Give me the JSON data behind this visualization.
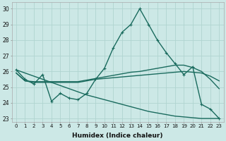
{
  "xlabel": "Humidex (Indice chaleur)",
  "xlim": [
    -0.5,
    23.5
  ],
  "ylim": [
    22.8,
    30.4
  ],
  "yticks": [
    23,
    24,
    25,
    26,
    27,
    28,
    29,
    30
  ],
  "xticks": [
    0,
    1,
    2,
    3,
    4,
    5,
    6,
    7,
    8,
    9,
    10,
    11,
    12,
    13,
    14,
    15,
    16,
    17,
    18,
    19,
    20,
    21,
    22,
    23
  ],
  "bg_color": "#cce8e6",
  "grid_color": "#b0d4d0",
  "line_color": "#1a6b5e",
  "series": [
    {
      "x": [
        0,
        1,
        2,
        3,
        4,
        5,
        6,
        7,
        8,
        9,
        10,
        11,
        12,
        13,
        14,
        15,
        16,
        17,
        18,
        19,
        20,
        21,
        22,
        23
      ],
      "y": [
        26.1,
        25.5,
        25.2,
        25.8,
        24.1,
        24.6,
        24.3,
        24.2,
        24.6,
        25.5,
        26.2,
        27.5,
        28.5,
        29.0,
        30.0,
        29.0,
        28.0,
        27.2,
        26.5,
        25.8,
        26.3,
        23.9,
        23.6,
        23.0
      ],
      "marker": "+"
    },
    {
      "x": [
        0,
        1,
        2,
        3,
        4,
        5,
        6,
        7,
        8,
        9,
        10,
        11,
        12,
        13,
        14,
        15,
        16,
        17,
        18,
        19,
        20,
        21,
        22,
        23
      ],
      "y": [
        25.9,
        25.4,
        25.3,
        25.3,
        25.3,
        25.3,
        25.3,
        25.3,
        25.4,
        25.5,
        25.55,
        25.6,
        25.65,
        25.7,
        25.75,
        25.8,
        25.85,
        25.9,
        25.95,
        26.0,
        25.95,
        25.9,
        25.7,
        25.4
      ],
      "marker": null
    },
    {
      "x": [
        0,
        1,
        2,
        3,
        4,
        5,
        6,
        7,
        8,
        9,
        10,
        11,
        12,
        13,
        14,
        15,
        16,
        17,
        18,
        19,
        20,
        21,
        22,
        23
      ],
      "y": [
        25.9,
        25.4,
        25.35,
        25.35,
        25.35,
        25.35,
        25.35,
        25.35,
        25.45,
        25.55,
        25.65,
        25.75,
        25.85,
        25.95,
        26.0,
        26.1,
        26.2,
        26.3,
        26.4,
        26.4,
        26.25,
        26.0,
        25.5,
        24.9
      ],
      "marker": null
    },
    {
      "x": [
        0,
        1,
        2,
        3,
        4,
        5,
        6,
        7,
        8,
        9,
        10,
        11,
        12,
        13,
        14,
        15,
        16,
        17,
        18,
        19,
        20,
        21,
        22,
        23
      ],
      "y": [
        26.1,
        25.9,
        25.7,
        25.5,
        25.3,
        25.1,
        24.9,
        24.7,
        24.5,
        24.35,
        24.2,
        24.05,
        23.9,
        23.75,
        23.6,
        23.45,
        23.35,
        23.25,
        23.15,
        23.1,
        23.05,
        23.0,
        23.0,
        23.0
      ],
      "marker": null
    }
  ]
}
